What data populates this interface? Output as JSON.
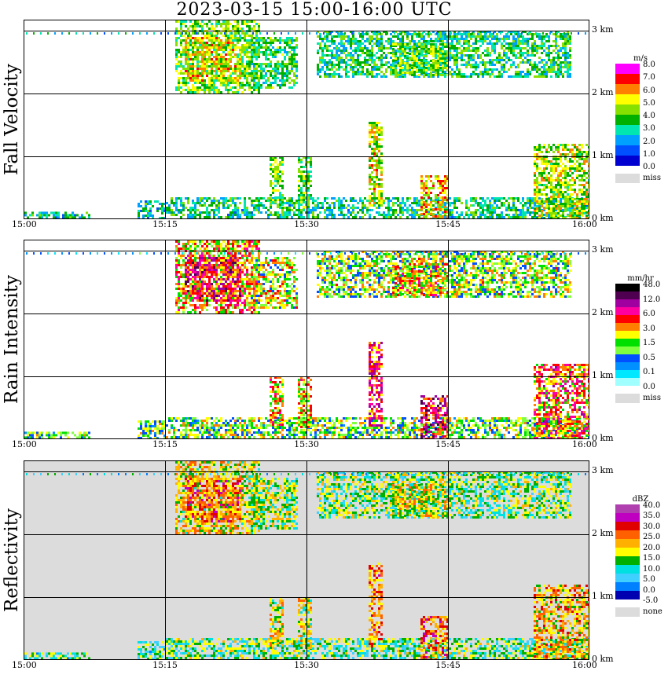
{
  "title": "2023-03-15   15:00-16:00 UTC",
  "km_labels": [
    "3 km",
    "2 km",
    "1 km",
    "0 km"
  ],
  "time_labels": [
    "15:00",
    "15:15",
    "15:30",
    "15:45",
    "16:00"
  ],
  "panels": [
    {
      "label": "Fall Velocity",
      "background": "#ffffff",
      "colorbar": {
        "unit": "m/s",
        "colors": [
          "#ff00ff",
          "#ff0000",
          "#ff8000",
          "#ffff00",
          "#88e000",
          "#00b000",
          "#00e6b0",
          "#00a0ff",
          "#0050ff",
          "#0000d0"
        ],
        "labels": [
          "8.0",
          "7.0",
          "6.0",
          "5.0",
          "4.0",
          "3.0",
          "2.0",
          "1.0",
          "0.0"
        ],
        "missing_label": "miss"
      }
    },
    {
      "label": "Rain Intensity",
      "background": "#ffffff",
      "colorbar": {
        "unit": "mm/hr",
        "colors": [
          "#000000",
          "#500050",
          "#a000a0",
          "#ff00a0",
          "#ff0000",
          "#ff8000",
          "#ffff00",
          "#00e000",
          "#80ff40",
          "#0050ff",
          "#0090ff",
          "#00e8ff",
          "#a0ffff"
        ],
        "labels": [
          "48.0",
          "12.0",
          "6.0",
          "3.0",
          "1.5",
          "0.5",
          "0.1",
          "0.0"
        ],
        "missing_label": "miss"
      }
    },
    {
      "label": "Reflectivity",
      "background": "#dcdcdc",
      "colorbar": {
        "unit": "dBZ",
        "colors": [
          "#b040b0",
          "#c000c0",
          "#e00000",
          "#ff6000",
          "#ffb000",
          "#ffff00",
          "#00b000",
          "#00e0e0",
          "#40d0ff",
          "#0080ff",
          "#0000b0"
        ],
        "labels": [
          "40.0",
          "35.0",
          "30.0",
          "25.0",
          "20.0",
          "15.0",
          "10.0",
          "5.0",
          "0.0",
          "-5.0"
        ],
        "missing_label": "none"
      }
    }
  ],
  "chart_data": {
    "type": "heatmap",
    "title": "2023-03-15   15:00-16:00 UTC",
    "x_range": [
      "15:00",
      "16:00"
    ],
    "x_ticks": [
      "15:00",
      "15:15",
      "15:30",
      "15:45",
      "16:00"
    ],
    "y_range_km": [
      0,
      3.2
    ],
    "y_ticks_km": [
      0,
      1,
      2,
      3
    ],
    "grid": true,
    "features": [
      {
        "name": "upper cloud layer",
        "time_start": "15:15",
        "time_end": "15:58",
        "base_km": 2.0,
        "top_km": 3.2
      },
      {
        "name": "rain shaft",
        "time": "15:37",
        "top_km": 1.6
      },
      {
        "name": "near-surface precipitation",
        "time_start": "15:00",
        "time_end": "16:00",
        "top_km": 0.9
      }
    ],
    "series": [
      {
        "name": "Fall Velocity",
        "unit": "m/s",
        "scale": [
          0,
          8
        ]
      },
      {
        "name": "Rain Intensity",
        "unit": "mm/hr",
        "scale": [
          0,
          48
        ]
      },
      {
        "name": "Reflectivity",
        "unit": "dBZ",
        "scale": [
          -5,
          40
        ]
      }
    ]
  }
}
